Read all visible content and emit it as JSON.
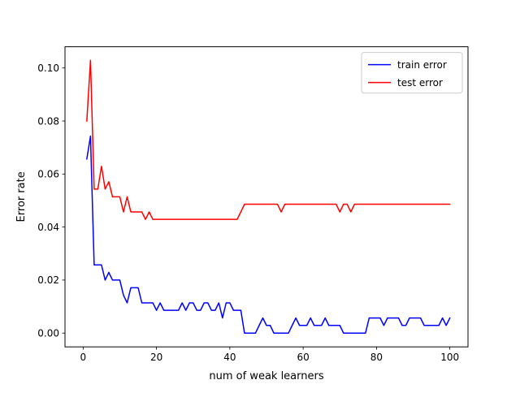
{
  "chart_data": {
    "type": "line",
    "title": "",
    "xlabel": "num of weak learners",
    "ylabel": "Error rate",
    "xlim": [
      -4.95,
      104.95
    ],
    "ylim": [
      -0.0052,
      0.108
    ],
    "xticks": [
      0,
      20,
      40,
      60,
      80,
      100
    ],
    "xtick_labels": [
      "0",
      "20",
      "40",
      "60",
      "80",
      "100"
    ],
    "yticks": [
      0.0,
      0.02,
      0.04,
      0.06,
      0.08,
      0.1
    ],
    "ytick_labels": [
      "0.00",
      "0.02",
      "0.04",
      "0.06",
      "0.08",
      "0.10"
    ],
    "grid": false,
    "legend_position": "top-right",
    "x": [
      1,
      2,
      3,
      4,
      5,
      6,
      7,
      8,
      9,
      10,
      11,
      12,
      13,
      14,
      15,
      16,
      17,
      18,
      19,
      20,
      21,
      22,
      23,
      24,
      25,
      26,
      27,
      28,
      29,
      30,
      31,
      32,
      33,
      34,
      35,
      36,
      37,
      38,
      39,
      40,
      41,
      42,
      43,
      44,
      45,
      46,
      47,
      48,
      49,
      50,
      51,
      52,
      53,
      54,
      55,
      56,
      57,
      58,
      59,
      60,
      61,
      62,
      63,
      64,
      65,
      66,
      67,
      68,
      69,
      70,
      71,
      72,
      73,
      74,
      75,
      76,
      77,
      78,
      79,
      80,
      81,
      82,
      83,
      84,
      85,
      86,
      87,
      88,
      89,
      90,
      91,
      92,
      93,
      94,
      95,
      96,
      97,
      98,
      99,
      100
    ],
    "series": [
      {
        "name": "train error",
        "color": "#0000ff",
        "values": [
          0.0657,
          0.0743,
          0.0257,
          0.0257,
          0.0257,
          0.02,
          0.0229,
          0.02,
          0.02,
          0.02,
          0.0143,
          0.0114,
          0.0171,
          0.0171,
          0.0171,
          0.0114,
          0.0114,
          0.0114,
          0.0114,
          0.0086,
          0.0114,
          0.0086,
          0.0086,
          0.0086,
          0.0086,
          0.0086,
          0.0114,
          0.0086,
          0.0114,
          0.0114,
          0.0086,
          0.0086,
          0.0114,
          0.0114,
          0.0086,
          0.0086,
          0.0114,
          0.0057,
          0.0114,
          0.0114,
          0.0086,
          0.0086,
          0.0086,
          0.0,
          0.0,
          0.0,
          0.0,
          0.0029,
          0.0057,
          0.0029,
          0.0029,
          0.0,
          0.0,
          0.0,
          0.0,
          0.0,
          0.0029,
          0.0057,
          0.0029,
          0.0029,
          0.0029,
          0.0057,
          0.0029,
          0.0029,
          0.0029,
          0.0057,
          0.0029,
          0.0029,
          0.0029,
          0.0029,
          0.0,
          0.0,
          0.0,
          0.0,
          0.0,
          0.0,
          0.0,
          0.0057,
          0.0057,
          0.0057,
          0.0057,
          0.0029,
          0.0057,
          0.0057,
          0.0057,
          0.0057,
          0.0029,
          0.0029,
          0.0057,
          0.0057,
          0.0057,
          0.0057,
          0.0029,
          0.0029,
          0.0029,
          0.0029,
          0.0029,
          0.0057,
          0.0029,
          0.0057
        ]
      },
      {
        "name": "test error",
        "color": "#ff0000",
        "values": [
          0.08,
          0.1029,
          0.0543,
          0.0543,
          0.0629,
          0.0543,
          0.0571,
          0.0514,
          0.0514,
          0.0514,
          0.0457,
          0.0514,
          0.0457,
          0.0457,
          0.0457,
          0.0457,
          0.0429,
          0.0457,
          0.0429,
          0.0429,
          0.0429,
          0.0429,
          0.0429,
          0.0429,
          0.0429,
          0.0429,
          0.0429,
          0.0429,
          0.0429,
          0.0429,
          0.0429,
          0.0429,
          0.0429,
          0.0429,
          0.0429,
          0.0429,
          0.0429,
          0.0429,
          0.0429,
          0.0429,
          0.0429,
          0.0429,
          0.0457,
          0.0486,
          0.0486,
          0.0486,
          0.0486,
          0.0486,
          0.0486,
          0.0486,
          0.0486,
          0.0486,
          0.0486,
          0.0457,
          0.0486,
          0.0486,
          0.0486,
          0.0486,
          0.0486,
          0.0486,
          0.0486,
          0.0486,
          0.0486,
          0.0486,
          0.0486,
          0.0486,
          0.0486,
          0.0486,
          0.0486,
          0.0457,
          0.0486,
          0.0486,
          0.0457,
          0.0486,
          0.0486,
          0.0486,
          0.0486,
          0.0486,
          0.0486,
          0.0486,
          0.0486,
          0.0486,
          0.0486,
          0.0486,
          0.0486,
          0.0486,
          0.0486,
          0.0486,
          0.0486,
          0.0486,
          0.0486,
          0.0486,
          0.0486,
          0.0486,
          0.0486,
          0.0486,
          0.0486,
          0.0486,
          0.0486,
          0.0486
        ]
      }
    ]
  }
}
